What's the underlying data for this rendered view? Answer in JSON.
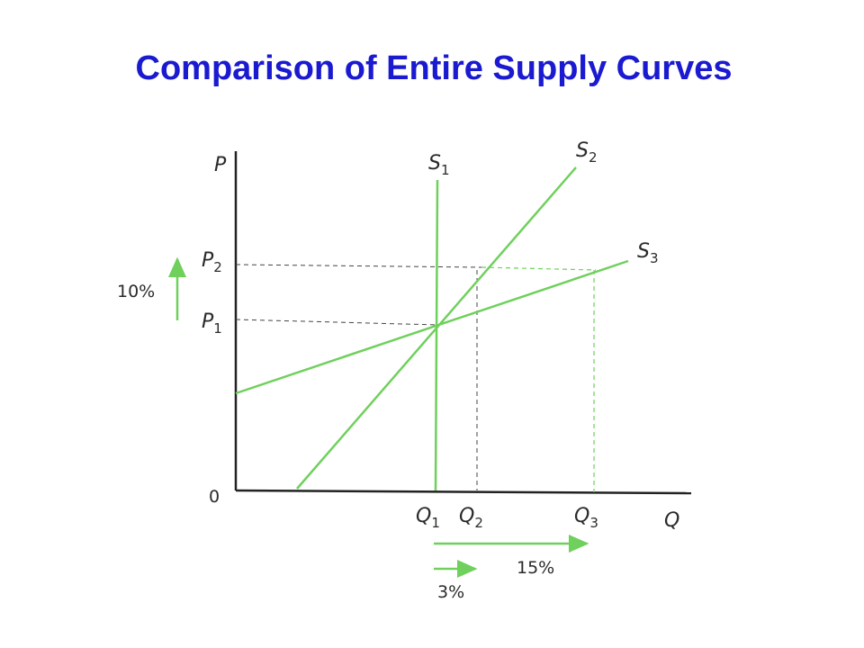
{
  "title": "Comparison of Entire Supply Curves",
  "axes": {
    "y": "P",
    "x": "Q",
    "origin": "0"
  },
  "curves": [
    {
      "symbol": "S",
      "subscript": "1"
    },
    {
      "symbol": "S",
      "subscript": "2"
    },
    {
      "symbol": "S",
      "subscript": "3"
    }
  ],
  "prices": [
    {
      "symbol": "P",
      "subscript": "2"
    },
    {
      "symbol": "P",
      "subscript": "1"
    }
  ],
  "quantities": [
    {
      "symbol": "Q",
      "subscript": "1"
    },
    {
      "symbol": "Q",
      "subscript": "2"
    },
    {
      "symbol": "Q",
      "subscript": "3"
    }
  ],
  "changes": {
    "price": "10%",
    "quantity_s3": "15%",
    "quantity_s2": "3%"
  }
}
